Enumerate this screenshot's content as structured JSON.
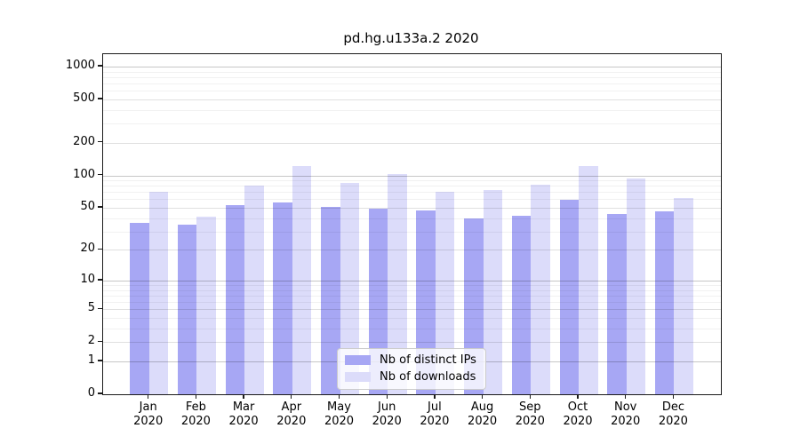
{
  "chart_data": {
    "type": "bar",
    "title": "pd.hg.u133a.2 2020",
    "categories": [
      "Jan 2020",
      "Feb 2020",
      "Mar 2020",
      "Apr 2020",
      "May 2020",
      "Jun 2020",
      "Jul 2020",
      "Aug 2020",
      "Sep 2020",
      "Oct 2020",
      "Nov 2020",
      "Dec 2020"
    ],
    "month_labels": [
      "Jan",
      "Feb",
      "Mar",
      "Apr",
      "May",
      "Jun",
      "Jul",
      "Aug",
      "Sep",
      "Oct",
      "Nov",
      "Dec"
    ],
    "year_label": "2020",
    "series": [
      {
        "name": "Nb of distinct IPs",
        "key": "ips",
        "color": "#a7a7f4",
        "values": [
          36,
          35,
          53,
          56,
          51,
          49,
          47,
          40,
          42,
          59,
          44,
          46
        ]
      },
      {
        "name": "Nb of downloads",
        "key": "downloads",
        "color": "#dcdcfa",
        "values": [
          70,
          41,
          80,
          123,
          85,
          103,
          70,
          73,
          82,
          123,
          94,
          62
        ]
      }
    ],
    "yscale": "log10(1+y)",
    "y_ticks": [
      0,
      1,
      2,
      5,
      10,
      20,
      50,
      100,
      200,
      500,
      1000
    ],
    "ylim": [
      0,
      1300
    ],
    "xlabel": "",
    "ylabel": "",
    "grid": "both",
    "legend_position": "bottom-center"
  },
  "colors": {
    "background": "#ffffff",
    "axis": "#1a1a1a",
    "grid_major": "#c6c6c6",
    "grid_medium": "#e0e0e0",
    "grid_minor": "#f0f0f0",
    "legend_border": "#cccccc",
    "legend_background": "rgba(255,255,255,0.8)"
  }
}
